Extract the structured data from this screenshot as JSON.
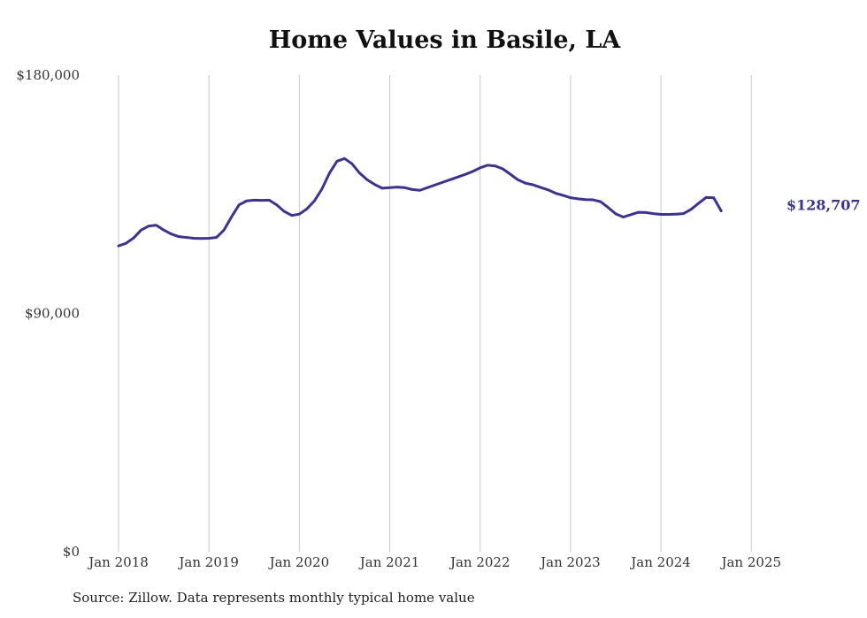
{
  "chart_data": {
    "type": "line",
    "title": "Home Values in Basile, LA",
    "source": "Source: Zillow. Data represents monthly typical home value",
    "xlabel": "",
    "ylabel": "",
    "ylim": [
      0,
      180000
    ],
    "y_ticks": [
      {
        "value": 0,
        "label": "$0"
      },
      {
        "value": 90000,
        "label": "$90,000"
      },
      {
        "value": 180000,
        "label": "$180,000"
      }
    ],
    "x_ticks": [
      {
        "value": 0,
        "label": "Jan 2018"
      },
      {
        "value": 12,
        "label": "Jan 2019"
      },
      {
        "value": 24,
        "label": "Jan 2020"
      },
      {
        "value": 36,
        "label": "Jan 2021"
      },
      {
        "value": 48,
        "label": "Jan 2022"
      },
      {
        "value": 60,
        "label": "Jan 2023"
      },
      {
        "value": 72,
        "label": "Jan 2024"
      },
      {
        "value": 84,
        "label": "Jan 2025"
      }
    ],
    "grid": "vertical",
    "line_color": "#3b3199",
    "end_label": "$128,707",
    "series": [
      {
        "values": [
          115500,
          116500,
          118500,
          121500,
          123000,
          123300,
          121500,
          120000,
          119000,
          118700,
          118400,
          118300,
          118400,
          118700,
          121500,
          126500,
          131000,
          132500,
          132800,
          132700,
          132800,
          131000,
          128500,
          127000,
          127500,
          129500,
          132500,
          137000,
          143000,
          147500,
          148500,
          146500,
          143000,
          140500,
          138700,
          137300,
          137500,
          137700,
          137500,
          136800,
          136500,
          137500,
          138500,
          139500,
          140500,
          141500,
          142500,
          143600,
          145000,
          146000,
          145700,
          144600,
          142600,
          140500,
          139200,
          138600,
          137600,
          136700,
          135400,
          134600,
          133700,
          133300,
          133000,
          132900,
          132200,
          130000,
          127600,
          126400,
          127300,
          128200,
          128100,
          127700,
          127400,
          127400,
          127500,
          127700,
          129300,
          131600,
          133800,
          133700,
          128707
        ]
      }
    ]
  }
}
